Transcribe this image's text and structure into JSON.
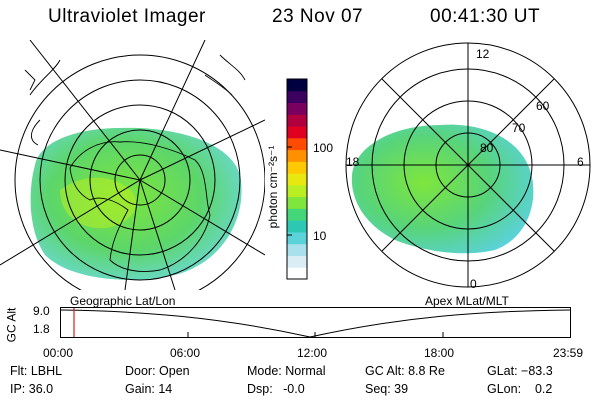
{
  "header": {
    "instrument": "Ultraviolet Imager",
    "date": "23 Nov 07",
    "time": "00:41:30 UT"
  },
  "left_panel": {
    "label": "Geographic Lat/Lon"
  },
  "right_panel": {
    "label": "Apex MLat/MLT",
    "mlt_labels": {
      "top": "12",
      "left": "18",
      "right": "6",
      "bottom": "0"
    },
    "mlat_labels": [
      "60",
      "70",
      "80"
    ]
  },
  "colorbar": {
    "unit_label": "photon cm⁻²s⁻¹",
    "tick_100": "100",
    "tick_10": "10",
    "colors": [
      "#ffffff",
      "#d8eef4",
      "#a8e0ec",
      "#5ad2d8",
      "#2cc8b4",
      "#44d67a",
      "#7ee63c",
      "#b8ee22",
      "#e8e810",
      "#ffc800",
      "#ff9000",
      "#ff4c00",
      "#e00020",
      "#b00040",
      "#7a0060",
      "#3c0060",
      "#000040"
    ]
  },
  "altitude_strip": {
    "axis_label": "GC Alt",
    "y_top": "9.0",
    "y_bottom": "1.8",
    "x_ticks": [
      "00:00",
      "06:00",
      "12:00",
      "18:00",
      "23:59"
    ]
  },
  "status": {
    "filter": "Flt: LBHL",
    "ip": "IP: 36.0",
    "door": "Door: Open",
    "gain": "Gain: 14",
    "mode": "Mode: Normal",
    "dsp": "Dsp:   -0.0",
    "gc_alt": "GC Alt: 8.8 Re",
    "seq": "Seq: 39",
    "glat": "GLat: −83.3",
    "glon": "GLon:    0.2"
  }
}
